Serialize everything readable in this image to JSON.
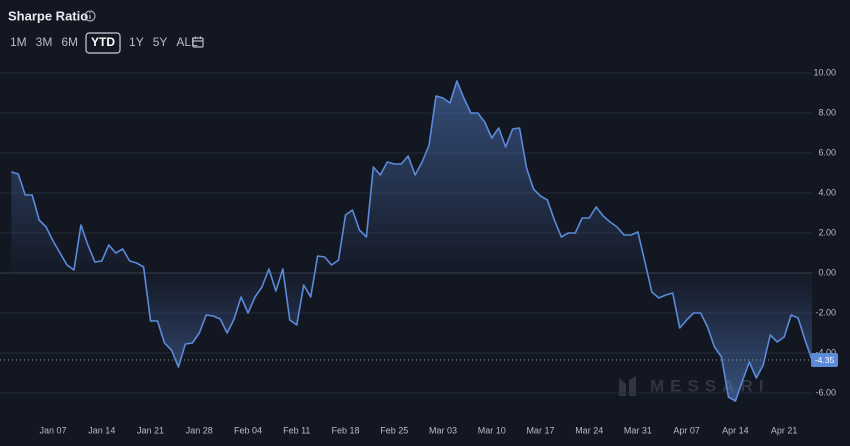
{
  "header": {
    "title": "Sharpe Ratio"
  },
  "ranges": [
    "1M",
    "3M",
    "6M",
    "YTD",
    "1Y",
    "5Y",
    "ALL"
  ],
  "selected_range": "YTD",
  "watermark": "MESSARI",
  "chart_data": {
    "type": "area",
    "categories": [
      null,
      null,
      null,
      null,
      null,
      null,
      "Jan 07",
      null,
      null,
      null,
      null,
      null,
      null,
      "Jan 14",
      null,
      null,
      null,
      null,
      null,
      null,
      "Jan 21",
      null,
      null,
      null,
      null,
      null,
      null,
      "Jan 28",
      null,
      null,
      null,
      null,
      null,
      null,
      "Feb 04",
      null,
      null,
      null,
      null,
      null,
      null,
      "Feb 11",
      null,
      null,
      null,
      null,
      null,
      null,
      "Feb 18",
      null,
      null,
      null,
      null,
      null,
      null,
      "Feb 25",
      null,
      null,
      null,
      null,
      null,
      null,
      "Mar 03",
      null,
      null,
      null,
      null,
      null,
      null,
      "Mar 10",
      null,
      null,
      null,
      null,
      null,
      null,
      "Mar 17",
      null,
      null,
      null,
      null,
      null,
      null,
      "Mar 24",
      null,
      null,
      null,
      null,
      null,
      null,
      "Mar 31",
      null,
      null,
      null,
      null,
      null,
      null,
      "Apr 07",
      null,
      null,
      null,
      null,
      null,
      null,
      "Apr 14",
      null,
      null,
      null,
      null,
      null,
      null,
      "Apr 21",
      null,
      null,
      null,
      null
    ],
    "series": [
      {
        "color": "#5b8ad9",
        "values": [
          5.05,
          4.95,
          3.9,
          3.9,
          2.65,
          2.3,
          1.6,
          1.0,
          0.4,
          0.15,
          2.4,
          1.4,
          0.55,
          0.6,
          1.4,
          1.0,
          1.2,
          0.6,
          0.5,
          0.3,
          -2.4,
          -2.4,
          -3.5,
          -3.85,
          -4.7,
          -3.55,
          -3.5,
          -3.0,
          -2.1,
          -2.15,
          -2.3,
          -3.0,
          -2.3,
          -1.2,
          -2.0,
          -1.2,
          -0.7,
          0.2,
          -0.9,
          0.2,
          -2.35,
          -2.6,
          -0.6,
          -1.2,
          0.85,
          0.8,
          0.4,
          0.65,
          2.9,
          3.15,
          2.15,
          1.8,
          5.3,
          4.9,
          5.55,
          5.45,
          5.45,
          5.85,
          4.9,
          5.55,
          6.4,
          8.85,
          8.75,
          8.5,
          9.6,
          8.75,
          8.0,
          8.0,
          7.55,
          6.75,
          7.25,
          6.3,
          7.2,
          7.25,
          5.25,
          4.2,
          3.85,
          3.65,
          2.65,
          1.8,
          2.0,
          2.0,
          2.75,
          2.75,
          3.3,
          2.85,
          2.55,
          2.3,
          1.9,
          1.9,
          2.05,
          0.55,
          -0.95,
          -1.25,
          -1.1,
          -1.0,
          -2.75,
          -2.35,
          -2.0,
          -2.0,
          -2.7,
          -3.7,
          -4.2,
          -6.2,
          -6.4,
          -5.4,
          -4.45,
          -5.25,
          -4.6,
          -3.1,
          -3.45,
          -3.2,
          -2.1,
          -2.25,
          -3.35,
          -4.35
        ]
      }
    ],
    "current_value_label": "-4.35",
    "ylim": [
      -7,
      11
    ],
    "yticks": [
      {
        "value": -6,
        "label": "-6.00"
      },
      {
        "value": -4,
        "label": "-4.00"
      },
      {
        "value": -2,
        "label": "-2.00"
      },
      {
        "value": 0,
        "label": "0.00"
      },
      {
        "value": 2,
        "label": "2.00"
      },
      {
        "value": 4,
        "label": "4.00"
      },
      {
        "value": 6,
        "label": "6.00"
      },
      {
        "value": 8,
        "label": "8.00"
      },
      {
        "value": 10,
        "label": "10.00"
      }
    ],
    "grid": true
  }
}
